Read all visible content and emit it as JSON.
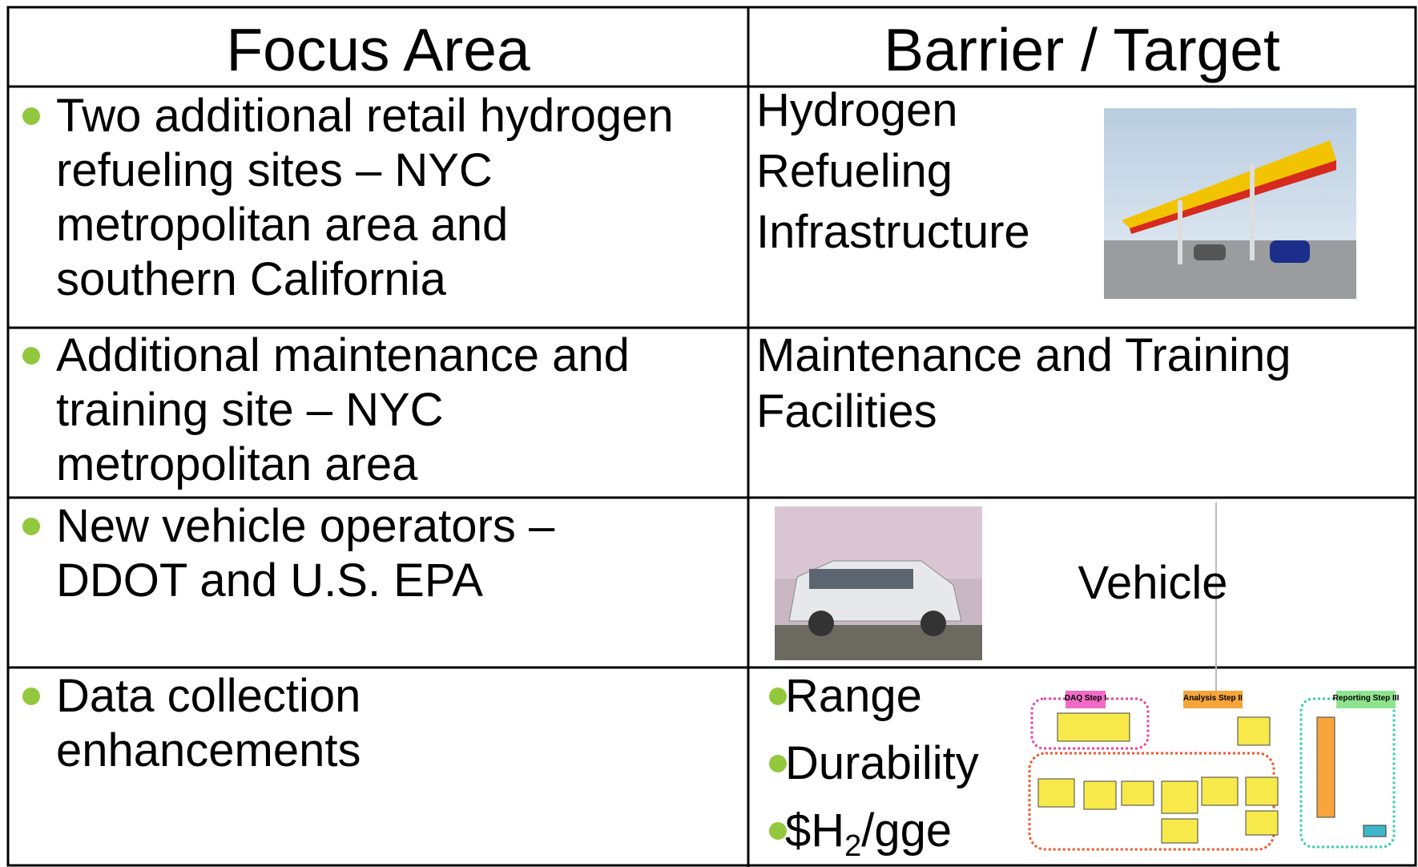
{
  "table": {
    "header": [
      "Focus Area",
      "Barrier / Target"
    ],
    "rows": [
      {
        "focus": [
          "Two additional retail hydrogen",
          "refueling sites – NYC",
          "metropolitan area and",
          "southern California"
        ],
        "barrier": [
          "Hydrogen",
          "Refueling",
          "Infrastructure"
        ]
      },
      {
        "focus": [
          "Additional maintenance and",
          "training site – NYC",
          "metropolitan area"
        ],
        "barrier": [
          "Maintenance and Training",
          "Facilities"
        ]
      },
      {
        "focus": [
          "New vehicle operators –",
          "DDOT and U.S. EPA"
        ],
        "barrier": [
          "Vehicle"
        ]
      },
      {
        "focus": [
          "Data collection",
          "enhancements"
        ],
        "barrier_bullets": [
          "Range",
          "Durability"
        ],
        "cost_bullet": {
          "prefix": "$H",
          "sub": "2",
          "suffix": "/gge"
        },
        "diagram_labels": [
          "DAQ Step I",
          "Analysis Step II",
          "Reporting Step III"
        ]
      }
    ]
  }
}
